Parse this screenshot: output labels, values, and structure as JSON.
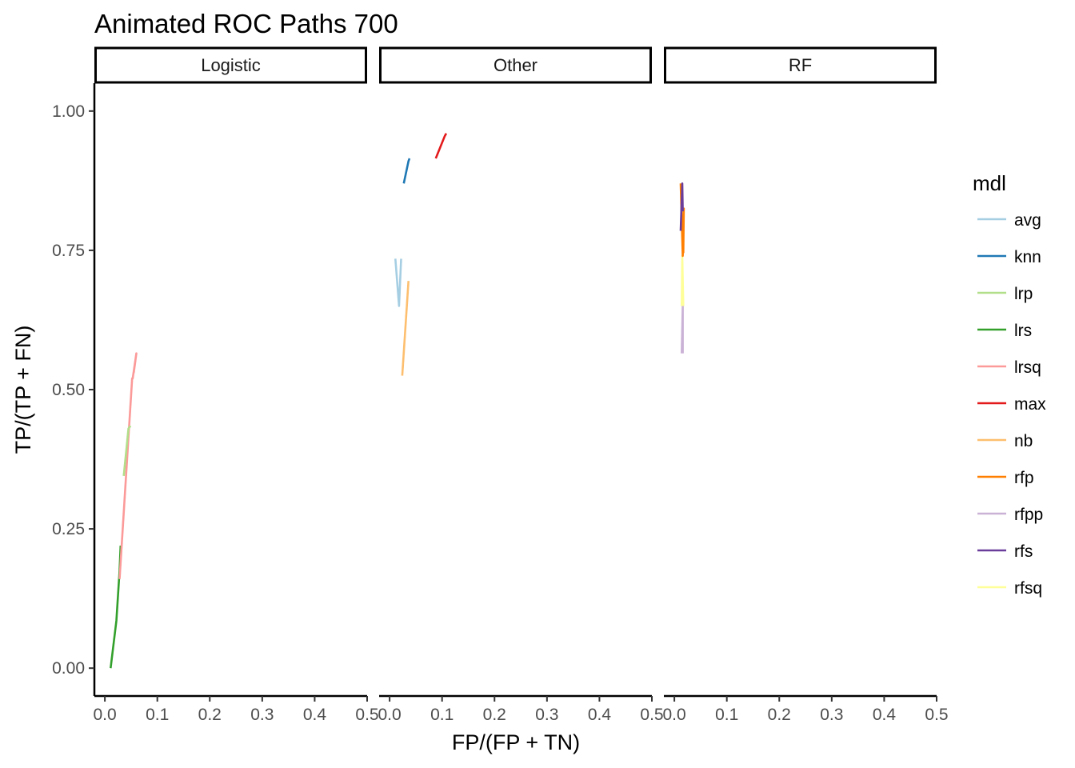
{
  "chart_data": {
    "type": "line",
    "title": "Animated ROC Paths 700",
    "xlabel": "FP/(FP + TN)",
    "ylabel": "TP/(TP + FN)",
    "xlim": [
      -0.02,
      0.5
    ],
    "ylim": [
      -0.05,
      1.05
    ],
    "x_ticks": [
      0.0,
      0.1,
      0.2,
      0.3,
      0.4,
      0.5
    ],
    "x_tick_labels": [
      "0.0",
      "0.1",
      "0.2",
      "0.3",
      "0.4",
      "0.5"
    ],
    "y_ticks": [
      0.0,
      0.25,
      0.5,
      0.75,
      1.0
    ],
    "y_tick_labels": [
      "0.00",
      "0.25",
      "0.50",
      "0.75",
      "1.00"
    ],
    "grid": false,
    "legend": {
      "title": "mdl",
      "position": "right",
      "entries": [
        {
          "name": "avg",
          "color": "#a6cee3"
        },
        {
          "name": "knn",
          "color": "#1f78b4"
        },
        {
          "name": "lrp",
          "color": "#b2df8a"
        },
        {
          "name": "lrs",
          "color": "#33a02c"
        },
        {
          "name": "lrsq",
          "color": "#fb9a99"
        },
        {
          "name": "max",
          "color": "#e31a1c"
        },
        {
          "name": "nb",
          "color": "#fdbf6f"
        },
        {
          "name": "rfp",
          "color": "#ff7f00"
        },
        {
          "name": "rfpp",
          "color": "#cab2d6"
        },
        {
          "name": "rfs",
          "color": "#6a3d9a"
        },
        {
          "name": "rfsq",
          "color": "#ffff99"
        }
      ]
    },
    "facets": [
      {
        "label": "Logistic",
        "series": [
          {
            "name": "lrs",
            "points": [
              [
                0.011,
                0.0
              ],
              [
                0.022,
                0.085
              ],
              [
                0.028,
                0.175
              ],
              [
                0.03,
                0.22
              ]
            ]
          },
          {
            "name": "lrsq",
            "points": [
              [
                0.028,
                0.16
              ],
              [
                0.052,
                0.52
              ],
              [
                0.053,
                0.52
              ],
              [
                0.06,
                0.565
              ],
              [
                0.055,
                0.53
              ]
            ]
          },
          {
            "name": "lrp",
            "points": [
              [
                0.036,
                0.345
              ],
              [
                0.045,
                0.43
              ],
              [
                0.049,
                0.435
              ]
            ]
          }
        ]
      },
      {
        "label": "Other",
        "series": [
          {
            "name": "avg",
            "points": [
              [
                0.011,
                0.735
              ],
              [
                0.018,
                0.65
              ],
              [
                0.022,
                0.735
              ]
            ]
          },
          {
            "name": "nb",
            "points": [
              [
                0.024,
                0.525
              ],
              [
                0.036,
                0.695
              ]
            ]
          },
          {
            "name": "knn",
            "points": [
              [
                0.027,
                0.87
              ],
              [
                0.036,
                0.91
              ],
              [
                0.038,
                0.915
              ]
            ]
          },
          {
            "name": "max",
            "points": [
              [
                0.088,
                0.915
              ],
              [
                0.105,
                0.955
              ],
              [
                0.108,
                0.96
              ]
            ]
          }
        ]
      },
      {
        "label": "RF",
        "series": [
          {
            "name": "rfpp",
            "points": [
              [
                0.014,
                0.565
              ],
              [
                0.016,
                0.65
              ],
              [
                0.016,
                0.565
              ]
            ]
          },
          {
            "name": "rfsq",
            "points": [
              [
                0.014,
                0.65
              ],
              [
                0.015,
                0.74
              ],
              [
                0.016,
                0.695
              ],
              [
                0.017,
                0.65
              ]
            ]
          },
          {
            "name": "rfp",
            "points": [
              [
                0.012,
                0.87
              ],
              [
                0.016,
                0.74
              ],
              [
                0.018,
                0.825
              ],
              [
                0.017,
                0.745
              ]
            ]
          },
          {
            "name": "rfs",
            "points": [
              [
                0.012,
                0.785
              ],
              [
                0.015,
                0.87
              ],
              [
                0.016,
                0.82
              ]
            ]
          }
        ]
      }
    ]
  }
}
